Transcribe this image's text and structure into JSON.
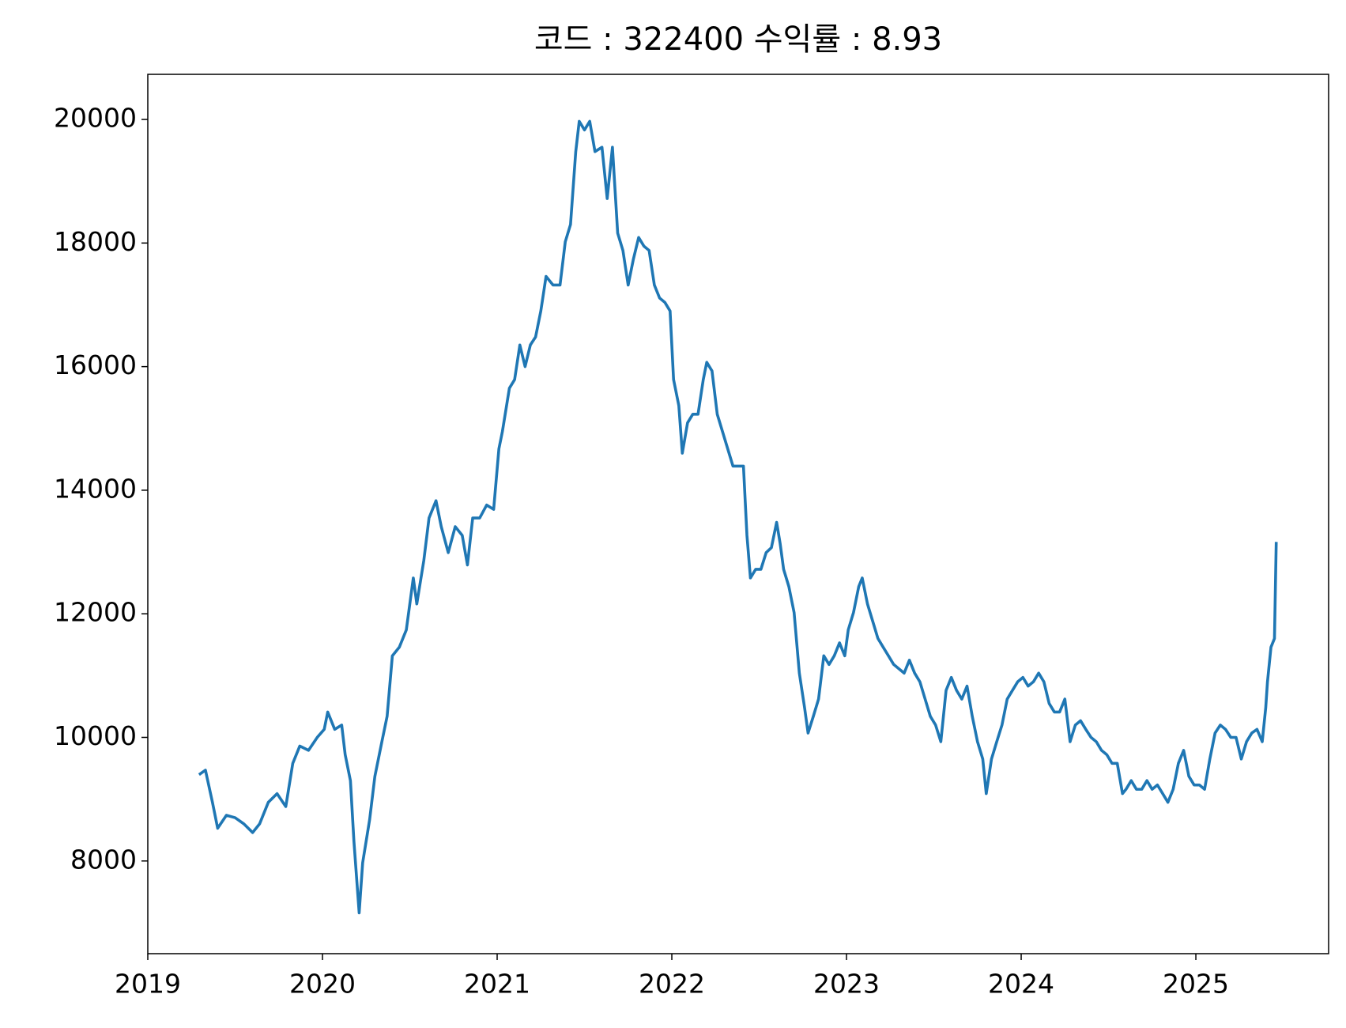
{
  "chart_data": {
    "type": "line",
    "title": "코드 : 322400 수익률 : 8.93",
    "xlim": [
      2019.0,
      2025.76
    ],
    "xticks": [
      2019,
      2020,
      2021,
      2022,
      2023,
      2024,
      2025
    ],
    "ylim": [
      6500,
      20730
    ],
    "yticks": [
      8000,
      10000,
      12000,
      14000,
      16000,
      18000,
      20000
    ],
    "grid": false,
    "x": [
      2019.3,
      2019.33,
      2019.37,
      2019.4,
      2019.45,
      2019.5,
      2019.55,
      2019.6,
      2019.64,
      2019.69,
      2019.74,
      2019.79,
      2019.83,
      2019.87,
      2019.92,
      2019.97,
      2020.01,
      2020.03,
      2020.07,
      2020.11,
      2020.13,
      2020.16,
      2020.18,
      2020.21,
      2020.23,
      2020.27,
      2020.3,
      2020.34,
      2020.37,
      2020.4,
      2020.44,
      2020.48,
      2020.52,
      2020.54,
      2020.58,
      2020.61,
      2020.65,
      2020.68,
      2020.72,
      2020.76,
      2020.8,
      2020.83,
      2020.86,
      2020.9,
      2020.94,
      2020.98,
      2021.01,
      2021.03,
      2021.07,
      2021.1,
      2021.13,
      2021.16,
      2021.19,
      2021.22,
      2021.25,
      2021.28,
      2021.32,
      2021.36,
      2021.39,
      2021.42,
      2021.45,
      2021.47,
      2021.5,
      2021.53,
      2021.56,
      2021.6,
      2021.63,
      2021.66,
      2021.69,
      2021.72,
      2021.75,
      2021.78,
      2021.81,
      2021.84,
      2021.87,
      2021.9,
      2021.93,
      2021.96,
      2021.99,
      2022.01,
      2022.04,
      2022.06,
      2022.09,
      2022.12,
      2022.15,
      2022.18,
      2022.2,
      2022.23,
      2022.26,
      2022.29,
      2022.32,
      2022.35,
      2022.38,
      2022.41,
      2022.43,
      2022.45,
      2022.48,
      2022.51,
      2022.54,
      2022.57,
      2022.6,
      2022.62,
      2022.64,
      2022.67,
      2022.7,
      2022.73,
      2022.76,
      2022.78,
      2022.81,
      2022.84,
      2022.87,
      2022.9,
      2022.93,
      2022.96,
      2022.99,
      2023.01,
      2023.04,
      2023.07,
      2023.09,
      2023.12,
      2023.15,
      2023.18,
      2023.21,
      2023.24,
      2023.27,
      2023.3,
      2023.33,
      2023.36,
      2023.39,
      2023.42,
      2023.45,
      2023.48,
      2023.51,
      2023.54,
      2023.57,
      2023.6,
      2023.63,
      2023.66,
      2023.69,
      2023.72,
      2023.75,
      2023.78,
      2023.8,
      2023.83,
      2023.86,
      2023.89,
      2023.92,
      2023.95,
      2023.98,
      2024.01,
      2024.04,
      2024.07,
      2024.1,
      2024.13,
      2024.16,
      2024.19,
      2024.22,
      2024.25,
      2024.28,
      2024.31,
      2024.34,
      2024.37,
      2024.4,
      2024.43,
      2024.46,
      2024.49,
      2024.52,
      2024.55,
      2024.58,
      2024.6,
      2024.63,
      2024.66,
      2024.69,
      2024.72,
      2024.75,
      2024.78,
      2024.81,
      2024.84,
      2024.87,
      2024.9,
      2024.93,
      2024.96,
      2024.99,
      2025.02,
      2025.05,
      2025.08,
      2025.11,
      2025.14,
      2025.17,
      2025.2,
      2025.23,
      2025.26,
      2025.29,
      2025.32,
      2025.35,
      2025.38,
      2025.4,
      2025.41,
      2025.43,
      2025.45,
      2025.46
    ],
    "series": [
      {
        "name": "322400",
        "color": "#1f77b4",
        "values": [
          9410,
          9470,
          8950,
          8530,
          8740,
          8700,
          8600,
          8460,
          8600,
          8950,
          9090,
          8880,
          9580,
          9860,
          9790,
          10000,
          10130,
          10410,
          10130,
          10200,
          9720,
          9300,
          8320,
          7160,
          7970,
          8670,
          9370,
          9930,
          10340,
          11320,
          11460,
          11740,
          12580,
          12160,
          12860,
          13550,
          13830,
          13410,
          12990,
          13410,
          13270,
          12790,
          13550,
          13550,
          13760,
          13690,
          14670,
          14950,
          15650,
          15790,
          16350,
          16000,
          16350,
          16480,
          16900,
          17460,
          17320,
          17320,
          18020,
          18300,
          19480,
          19970,
          19830,
          19970,
          19480,
          19550,
          18720,
          19550,
          18160,
          17880,
          17320,
          17740,
          18090,
          17950,
          17880,
          17320,
          17110,
          17040,
          16900,
          15790,
          15370,
          14600,
          15090,
          15230,
          15230,
          15790,
          16070,
          15930,
          15230,
          14950,
          14670,
          14390,
          14390,
          14390,
          13270,
          12580,
          12720,
          12720,
          12990,
          13070,
          13480,
          13140,
          12720,
          12440,
          12020,
          11040,
          10480,
          10070,
          10340,
          10620,
          11320,
          11180,
          11320,
          11530,
          11320,
          11740,
          12020,
          12440,
          12580,
          12160,
          11880,
          11600,
          11460,
          11320,
          11180,
          11110,
          11040,
          11250,
          11040,
          10900,
          10620,
          10340,
          10200,
          9930,
          10760,
          10970,
          10760,
          10620,
          10830,
          10340,
          9930,
          9650,
          9090,
          9650,
          9930,
          10200,
          10620,
          10760,
          10900,
          10970,
          10830,
          10900,
          11040,
          10900,
          10550,
          10410,
          10410,
          10620,
          9930,
          10200,
          10270,
          10130,
          10000,
          9930,
          9790,
          9720,
          9580,
          9580,
          9090,
          9160,
          9300,
          9160,
          9160,
          9300,
          9160,
          9230,
          9090,
          8950,
          9160,
          9580,
          9790,
          9370,
          9230,
          9230,
          9160,
          9650,
          10070,
          10200,
          10130,
          10000,
          10000,
          9650,
          9930,
          10070,
          10130,
          9930,
          10480,
          10900,
          11460,
          11600,
          13140
        ]
      }
    ]
  }
}
